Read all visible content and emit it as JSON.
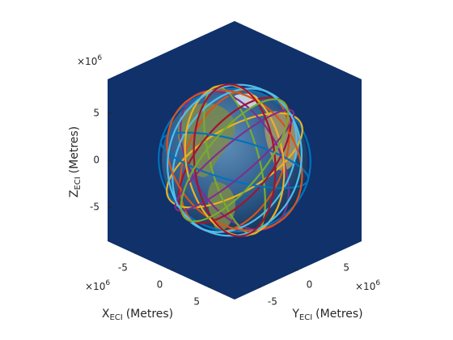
{
  "chart_data": {
    "type": "orbit3d",
    "xlabel": {
      "symbol": "X",
      "subscript": "ECI",
      "unit": "(Metres)"
    },
    "ylabel": {
      "symbol": "Y",
      "subscript": "ECI",
      "unit": "(Metres)"
    },
    "zlabel": {
      "symbol": "Z",
      "subscript": "ECI",
      "unit": "(Metres)"
    },
    "exponent": {
      "base": "×10",
      "power": "6"
    },
    "xlim": [
      -8.6,
      8.6
    ],
    "ylim": [
      -8.6,
      8.6
    ],
    "zlim": [
      -8.6,
      8.6
    ],
    "xticks": [
      -5,
      0,
      5
    ],
    "yticks": [
      -5,
      0,
      5
    ],
    "zticks": [
      -5,
      0,
      5
    ],
    "background": "#10316a"
  }
}
